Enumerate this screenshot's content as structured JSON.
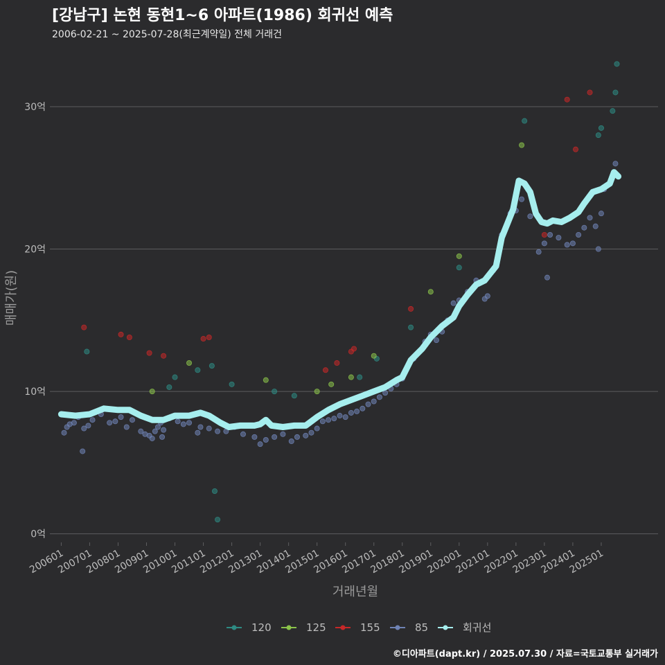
{
  "chart_data": {
    "type": "scatter",
    "title": "[강남구] 논현 동현1~6 아파트(1986) 회귀선 예측",
    "subtitle": "2006-02-21 ~ 2025-07-28(최근계약일) 전체 거래건",
    "xlabel": "거래년월",
    "ylabel": "매매가(원)",
    "y_unit": "억",
    "ylim": [
      -0.6,
      33.6
    ],
    "xlim": [
      2005.6,
      2027.0
    ],
    "y_ticks": [
      0,
      10,
      20,
      30
    ],
    "y_tick_labels": [
      "0억",
      "10억",
      "20억",
      "30억"
    ],
    "x_ticks": [
      "200601",
      "200701",
      "200801",
      "200901",
      "201001",
      "201101",
      "201201",
      "201301",
      "201401",
      "201501",
      "201601",
      "201701",
      "201801",
      "201901",
      "202001",
      "202101",
      "202201",
      "202301",
      "202401",
      "202501"
    ],
    "legend": [
      "120",
      "125",
      "155",
      "85",
      "회귀선"
    ],
    "legend_position": "bottom",
    "colors": {
      "120": "#2e8b83",
      "125": "#8bc34a",
      "155": "#c62828",
      "85": "#6f83b5",
      "regression": "#a6eeee"
    },
    "series": [
      {
        "name": "85",
        "points": [
          [
            2006.1,
            7.1
          ],
          [
            2006.2,
            7.5
          ],
          [
            2006.3,
            7.7
          ],
          [
            2006.45,
            7.8
          ],
          [
            2006.6,
            8.2
          ],
          [
            2006.75,
            5.8
          ],
          [
            2006.8,
            7.4
          ],
          [
            2006.95,
            7.6
          ],
          [
            2007.1,
            8.0
          ],
          [
            2007.4,
            8.4
          ],
          [
            2007.7,
            7.8
          ],
          [
            2007.9,
            7.9
          ],
          [
            2008.1,
            8.2
          ],
          [
            2008.3,
            7.5
          ],
          [
            2008.5,
            8.0
          ],
          [
            2008.8,
            7.2
          ],
          [
            2008.95,
            7.0
          ],
          [
            2009.1,
            6.9
          ],
          [
            2009.2,
            6.7
          ],
          [
            2009.3,
            7.2
          ],
          [
            2009.4,
            7.5
          ],
          [
            2009.5,
            7.8
          ],
          [
            2009.55,
            6.8
          ],
          [
            2009.6,
            7.3
          ],
          [
            2009.8,
            8.1
          ],
          [
            2010.1,
            7.9
          ],
          [
            2010.3,
            7.7
          ],
          [
            2010.5,
            7.8
          ],
          [
            2010.8,
            7.1
          ],
          [
            2010.9,
            7.5
          ],
          [
            2011.2,
            7.4
          ],
          [
            2011.5,
            7.2
          ],
          [
            2011.8,
            7.2
          ],
          [
            2012.1,
            7.5
          ],
          [
            2012.4,
            7.0
          ],
          [
            2012.8,
            6.8
          ],
          [
            2013.0,
            6.3
          ],
          [
            2013.2,
            6.6
          ],
          [
            2013.5,
            6.8
          ],
          [
            2013.8,
            7.0
          ],
          [
            2014.1,
            6.5
          ],
          [
            2014.3,
            6.8
          ],
          [
            2014.6,
            6.9
          ],
          [
            2014.8,
            7.1
          ],
          [
            2015.0,
            7.4
          ],
          [
            2015.2,
            7.9
          ],
          [
            2015.4,
            8.0
          ],
          [
            2015.6,
            8.1
          ],
          [
            2015.8,
            8.3
          ],
          [
            2016.0,
            8.2
          ],
          [
            2016.2,
            8.5
          ],
          [
            2016.4,
            8.6
          ],
          [
            2016.6,
            8.8
          ],
          [
            2016.8,
            9.1
          ],
          [
            2017.0,
            9.3
          ],
          [
            2017.2,
            9.6
          ],
          [
            2017.4,
            9.9
          ],
          [
            2017.6,
            10.2
          ],
          [
            2017.8,
            10.5
          ],
          [
            2018.0,
            10.9
          ],
          [
            2018.2,
            11.8
          ],
          [
            2018.4,
            12.3
          ],
          [
            2018.6,
            12.8
          ],
          [
            2018.8,
            13.5
          ],
          [
            2019.0,
            14.0
          ],
          [
            2019.2,
            13.6
          ],
          [
            2019.4,
            14.2
          ],
          [
            2019.6,
            15.0
          ],
          [
            2019.8,
            16.2
          ],
          [
            2020.0,
            16.4
          ],
          [
            2020.3,
            17.0
          ],
          [
            2020.6,
            17.8
          ],
          [
            2020.9,
            16.5
          ],
          [
            2021.0,
            16.7
          ],
          [
            2021.2,
            18.5
          ],
          [
            2021.5,
            21.0
          ],
          [
            2021.8,
            22.5
          ],
          [
            2022.0,
            22.7
          ],
          [
            2022.2,
            23.5
          ],
          [
            2022.5,
            22.3
          ],
          [
            2022.8,
            19.8
          ],
          [
            2023.0,
            20.4
          ],
          [
            2023.1,
            18.0
          ],
          [
            2023.2,
            21.0
          ],
          [
            2023.5,
            20.8
          ],
          [
            2023.8,
            20.3
          ],
          [
            2024.0,
            20.4
          ],
          [
            2024.2,
            21.0
          ],
          [
            2024.4,
            21.5
          ],
          [
            2024.6,
            22.2
          ],
          [
            2024.8,
            21.6
          ],
          [
            2024.9,
            20.0
          ],
          [
            2025.0,
            22.5
          ],
          [
            2025.1,
            24.2
          ],
          [
            2025.3,
            24.6
          ],
          [
            2025.5,
            26.0
          ]
        ]
      },
      {
        "name": "120",
        "points": [
          [
            2006.9,
            12.8
          ],
          [
            2009.8,
            10.3
          ],
          [
            2010.0,
            11.0
          ],
          [
            2010.8,
            11.5
          ],
          [
            2011.3,
            11.8
          ],
          [
            2011.4,
            3.0
          ],
          [
            2011.5,
            1.0
          ],
          [
            2012.0,
            10.5
          ],
          [
            2013.5,
            10.0
          ],
          [
            2014.2,
            9.7
          ],
          [
            2016.5,
            11.0
          ],
          [
            2017.1,
            12.3
          ],
          [
            2018.3,
            14.5
          ],
          [
            2020.0,
            18.7
          ],
          [
            2022.3,
            29.0
          ],
          [
            2024.9,
            28.0
          ],
          [
            2025.0,
            28.5
          ],
          [
            2025.4,
            29.7
          ],
          [
            2025.5,
            31.0
          ],
          [
            2025.55,
            33.0
          ]
        ]
      },
      {
        "name": "125",
        "points": [
          [
            2009.2,
            10.0
          ],
          [
            2010.5,
            12.0
          ],
          [
            2013.2,
            10.8
          ],
          [
            2015.0,
            10.0
          ],
          [
            2015.5,
            10.5
          ],
          [
            2016.2,
            11.0
          ],
          [
            2017.0,
            12.5
          ],
          [
            2019.0,
            17.0
          ],
          [
            2020.0,
            19.5
          ],
          [
            2022.2,
            27.3
          ]
        ]
      },
      {
        "name": "155",
        "points": [
          [
            2006.8,
            14.5
          ],
          [
            2008.1,
            14.0
          ],
          [
            2008.4,
            13.8
          ],
          [
            2009.1,
            12.7
          ],
          [
            2009.6,
            12.5
          ],
          [
            2011.0,
            13.7
          ],
          [
            2011.2,
            13.8
          ],
          [
            2015.3,
            11.5
          ],
          [
            2015.7,
            12.0
          ],
          [
            2016.2,
            12.8
          ],
          [
            2016.3,
            13.0
          ],
          [
            2018.3,
            15.8
          ],
          [
            2023.0,
            21.0
          ],
          [
            2023.8,
            30.5
          ],
          [
            2024.1,
            27.0
          ],
          [
            2024.6,
            31.0
          ]
        ]
      }
    ],
    "regression": [
      [
        2006.0,
        8.4
      ],
      [
        2006.5,
        8.3
      ],
      [
        2007.0,
        8.4
      ],
      [
        2007.5,
        8.8
      ],
      [
        2008.0,
        8.7
      ],
      [
        2008.4,
        8.7
      ],
      [
        2008.8,
        8.3
      ],
      [
        2009.2,
        8.0
      ],
      [
        2009.6,
        8.0
      ],
      [
        2010.0,
        8.3
      ],
      [
        2010.5,
        8.3
      ],
      [
        2010.9,
        8.5
      ],
      [
        2011.2,
        8.3
      ],
      [
        2011.6,
        7.8
      ],
      [
        2011.9,
        7.5
      ],
      [
        2012.3,
        7.6
      ],
      [
        2012.8,
        7.6
      ],
      [
        2013.0,
        7.7
      ],
      [
        2013.2,
        8.0
      ],
      [
        2013.4,
        7.6
      ],
      [
        2013.8,
        7.5
      ],
      [
        2014.2,
        7.6
      ],
      [
        2014.6,
        7.6
      ],
      [
        2015.0,
        8.2
      ],
      [
        2015.4,
        8.7
      ],
      [
        2015.8,
        9.1
      ],
      [
        2016.2,
        9.4
      ],
      [
        2016.6,
        9.7
      ],
      [
        2017.0,
        10.0
      ],
      [
        2017.4,
        10.3
      ],
      [
        2017.8,
        10.8
      ],
      [
        2018.0,
        11.0
      ],
      [
        2018.3,
        12.2
      ],
      [
        2018.7,
        13.0
      ],
      [
        2019.0,
        13.8
      ],
      [
        2019.4,
        14.6
      ],
      [
        2019.8,
        15.2
      ],
      [
        2020.0,
        16.0
      ],
      [
        2020.3,
        16.8
      ],
      [
        2020.6,
        17.5
      ],
      [
        2020.9,
        17.8
      ],
      [
        2021.1,
        18.3
      ],
      [
        2021.3,
        18.8
      ],
      [
        2021.5,
        20.8
      ],
      [
        2021.7,
        21.8
      ],
      [
        2021.9,
        22.8
      ],
      [
        2022.1,
        24.8
      ],
      [
        2022.3,
        24.6
      ],
      [
        2022.5,
        24.0
      ],
      [
        2022.7,
        22.5
      ],
      [
        2022.9,
        21.9
      ],
      [
        2023.1,
        21.8
      ],
      [
        2023.3,
        22.0
      ],
      [
        2023.6,
        21.9
      ],
      [
        2023.9,
        22.2
      ],
      [
        2024.2,
        22.6
      ],
      [
        2024.4,
        23.2
      ],
      [
        2024.7,
        24.0
      ],
      [
        2025.0,
        24.2
      ],
      [
        2025.3,
        24.6
      ],
      [
        2025.45,
        25.4
      ],
      [
        2025.6,
        25.1
      ]
    ]
  },
  "footer": "©디아파트(dapt.kr) / 2025.07.30 / 자료=국토교통부 실거래가"
}
